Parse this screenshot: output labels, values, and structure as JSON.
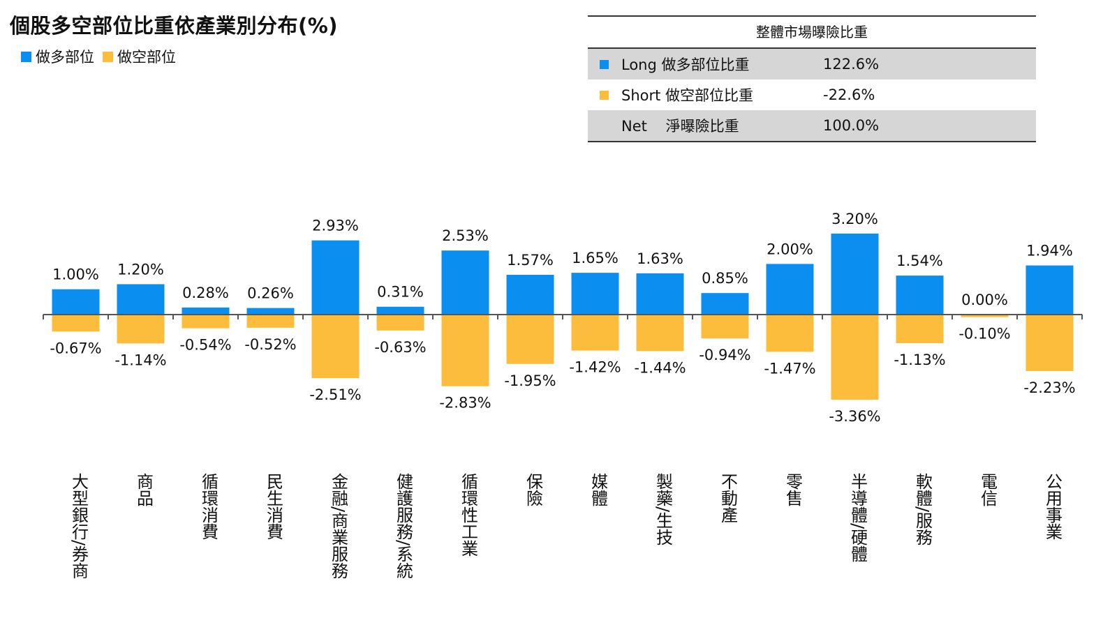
{
  "title": "個股多空部位比重依產業別分布(%)",
  "legend": {
    "long_label": "做多部位",
    "short_label": "做空部位"
  },
  "colors": {
    "long": "#0A8EF0",
    "short": "#FDBD3C",
    "axis": "#555555"
  },
  "summary": {
    "title": "整體市場曝險比重",
    "rows": [
      {
        "label": "Long 做多部位比重",
        "value": "122.6%",
        "marker": "long"
      },
      {
        "label": "Short 做空部位比重",
        "value": "-22.6%",
        "marker": "short"
      },
      {
        "label": "Net    淨曝險比重",
        "value": "100.0%",
        "marker": "none"
      }
    ]
  },
  "chart_data": {
    "type": "bar",
    "title": "個股多空部位比重依產業別分布(%)",
    "categories": [
      "大型銀行/券商",
      "商品",
      "循環消費",
      "民生消費",
      "金融/商業服務",
      "健護服務/系統",
      "循環性工業",
      "保險",
      "媒體",
      "製藥/生技",
      "不動產",
      "零售",
      "半導體/硬體",
      "軟體/服務",
      "電信",
      "公用事業"
    ],
    "series": [
      {
        "name": "做多部位",
        "values": [
          1.0,
          1.2,
          0.28,
          0.26,
          2.93,
          0.31,
          2.53,
          1.57,
          1.65,
          1.63,
          0.85,
          2.0,
          3.2,
          1.54,
          0.0,
          1.94
        ],
        "labels": [
          "1.00%",
          "1.20%",
          "0.28%",
          "0.26%",
          "2.93%",
          "0.31%",
          "2.53%",
          "1.57%",
          "1.65%",
          "1.63%",
          "0.85%",
          "2.00%",
          "3.20%",
          "1.54%",
          "0.00%",
          "1.94%"
        ]
      },
      {
        "name": "做空部位",
        "values": [
          -0.67,
          -1.14,
          -0.54,
          -0.52,
          -2.51,
          -0.63,
          -2.83,
          -1.95,
          -1.42,
          -1.44,
          -0.94,
          -1.47,
          -3.36,
          -1.13,
          -0.1,
          -2.23
        ],
        "labels": [
          "-0.67%",
          "-1.14%",
          "-0.54%",
          "-0.52%",
          "-2.51%",
          "-0.63%",
          "-2.83%",
          "-1.95%",
          "-1.42%",
          "-1.44%",
          "-0.94%",
          "-1.47%",
          "-3.36%",
          "-1.13%",
          "-0.10%",
          "-2.23%"
        ]
      }
    ],
    "ylim": [
      -3.5,
      3.5
    ],
    "legend_position": "top-left",
    "grid": false
  }
}
